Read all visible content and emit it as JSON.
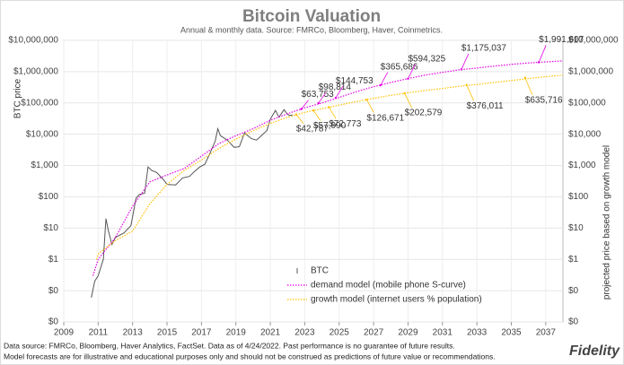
{
  "chart_data": {
    "type": "line",
    "title": "Bitcoin Valuation",
    "subtitle": "Annual & monthly data.  Source: FMRCo, Bloomberg, Haver, Coinmetrics.",
    "y_label": "BTC price",
    "y2_label": "projected price based on growth model",
    "log_scale": true,
    "grid": true,
    "xlim": [
      2009,
      2038
    ],
    "xticks": [
      2009,
      2011,
      2013,
      2015,
      2017,
      2019,
      2021,
      2023,
      2025,
      2027,
      2029,
      2031,
      2033,
      2035,
      2037
    ],
    "ylim": [
      0.01,
      10000000
    ],
    "yticks": [
      {
        "value": 0.01,
        "label": "$0"
      },
      {
        "value": 0.1,
        "label": "$0"
      },
      {
        "value": 1,
        "label": "$1"
      },
      {
        "value": 10,
        "label": "$10"
      },
      {
        "value": 100,
        "label": "$100"
      },
      {
        "value": 1000,
        "label": "$1,000"
      },
      {
        "value": 10000,
        "label": "$10,000"
      },
      {
        "value": 100000,
        "label": "$100,000"
      },
      {
        "value": 1000000,
        "label": "$1,000,000"
      },
      {
        "value": 10000000,
        "label": "$10,000,000"
      }
    ],
    "series": [
      {
        "name": "BTC",
        "color": "#555555",
        "style": "solid",
        "x": [
          2010.6,
          2010.8,
          2011.0,
          2011.3,
          2011.45,
          2011.6,
          2011.8,
          2012.0,
          2012.5,
          2012.9,
          2013.2,
          2013.4,
          2013.7,
          2013.9,
          2014.1,
          2014.4,
          2014.8,
          2015.0,
          2015.5,
          2015.9,
          2016.3,
          2016.6,
          2016.9,
          2017.2,
          2017.5,
          2017.8,
          2017.95,
          2018.1,
          2018.5,
          2018.9,
          2019.2,
          2019.5,
          2019.9,
          2020.2,
          2020.5,
          2020.8,
          2021.0,
          2021.3,
          2021.5,
          2021.8,
          2021.95,
          2022.1,
          2022.3
        ],
        "values": [
          0.06,
          0.2,
          0.3,
          1,
          20,
          8,
          3,
          5,
          7,
          12,
          90,
          120,
          130,
          900,
          700,
          600,
          350,
          250,
          240,
          400,
          450,
          650,
          900,
          1100,
          2500,
          6000,
          15000,
          9000,
          6500,
          3800,
          4000,
          11000,
          7200,
          6500,
          9200,
          13000,
          30000,
          58000,
          35000,
          61000,
          47000,
          40000,
          41000
        ]
      },
      {
        "name": "demand model (mobile phone S-curve)",
        "color": "#e600e6",
        "style": "dotted",
        "x": [
          2010.7,
          2011,
          2012,
          2013,
          2014,
          2015,
          2016,
          2017,
          2018,
          2019,
          2020,
          2021,
          2022,
          2023,
          2024,
          2025,
          2026,
          2027,
          2028,
          2029,
          2030,
          2031,
          2032,
          2033,
          2034,
          2035,
          2036,
          2037,
          2038
        ],
        "values": [
          0.3,
          1,
          5,
          50,
          300,
          500,
          800,
          2000,
          5000,
          9000,
          15000,
          28000,
          45000,
          70000,
          100000,
          150000,
          230000,
          330000,
          450000,
          600000,
          780000,
          950000,
          1150000,
          1300000,
          1500000,
          1700000,
          1900000,
          2050000,
          2200000
        ]
      },
      {
        "name": "growth model (internet users % population)",
        "color": "#ffc000",
        "style": "dotted",
        "x": [
          2010.9,
          2011,
          2012,
          2013,
          2014,
          2015,
          2016,
          2017,
          2018,
          2019,
          2020,
          2021,
          2022,
          2023,
          2024,
          2025,
          2026,
          2027,
          2028,
          2029,
          2030,
          2031,
          2032,
          2033,
          2034,
          2035,
          2036,
          2037,
          2038
        ],
        "values": [
          1,
          1.5,
          4,
          8,
          60,
          250,
          700,
          1500,
          3500,
          7000,
          13000,
          22000,
          35000,
          50000,
          65000,
          85000,
          110000,
          140000,
          175000,
          210000,
          250000,
          290000,
          340000,
          390000,
          450000,
          520000,
          600000,
          690000,
          780000
        ]
      }
    ],
    "annotations": [
      {
        "series": 1,
        "x": 2022.8,
        "value": 63753,
        "label": "$63,753"
      },
      {
        "series": 1,
        "x": 2023.8,
        "value": 98814,
        "label": "$98,814"
      },
      {
        "series": 1,
        "x": 2024.8,
        "value": 144753,
        "label": "$144,753"
      },
      {
        "series": 1,
        "x": 2027.4,
        "value": 365686,
        "label": "$365,686"
      },
      {
        "series": 1,
        "x": 2029.0,
        "value": 594325,
        "label": "$594,325"
      },
      {
        "series": 1,
        "x": 2032.1,
        "value": 1175037,
        "label": "$1,175,037"
      },
      {
        "series": 1,
        "x": 2036.6,
        "value": 1991607,
        "label": "$1,991,607"
      },
      {
        "series": 2,
        "x": 2022.5,
        "value": 42787,
        "label": "$42,787"
      },
      {
        "series": 2,
        "x": 2023.5,
        "value": 57990,
        "label": "$57,990"
      },
      {
        "series": 2,
        "x": 2024.4,
        "value": 72773,
        "label": "$72,773"
      },
      {
        "series": 2,
        "x": 2026.6,
        "value": 126671,
        "label": "$126,671"
      },
      {
        "series": 2,
        "x": 2028.8,
        "value": 202579,
        "label": "$202,579"
      },
      {
        "series": 2,
        "x": 2032.4,
        "value": 376011,
        "label": "$376,011"
      },
      {
        "series": 2,
        "x": 2035.8,
        "value": 635716,
        "label": "$635,716"
      }
    ],
    "footnotes": [
      "Data source: FMRCo, Bloomberg, Haver Analytics, FactSet. Data as of 4/24/2022. Past performance is no guarantee of future results.",
      "Model forecasts are for illustrative and educational purposes only and should not be construed as predictions of future value or recommendations."
    ],
    "logo": "Fidelity"
  }
}
